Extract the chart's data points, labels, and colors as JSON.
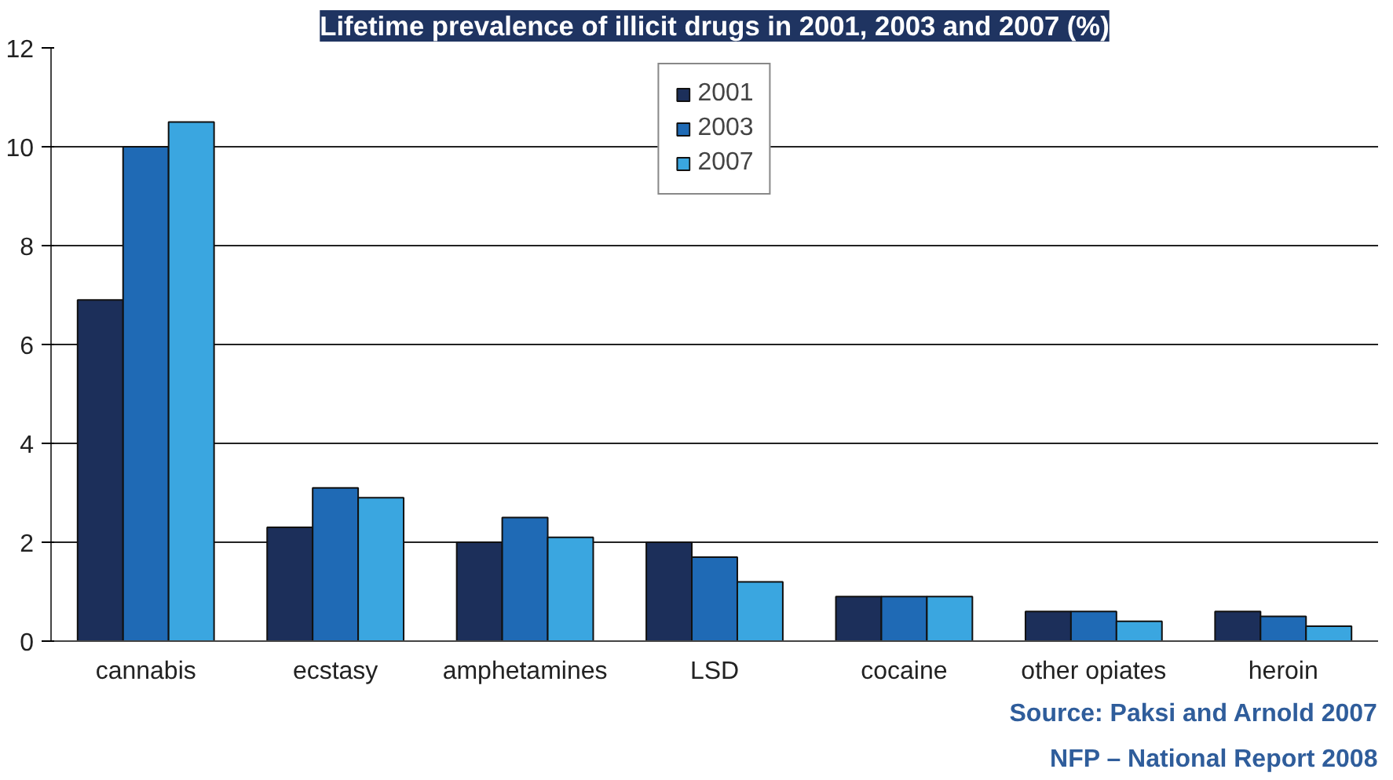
{
  "chart_data": {
    "type": "bar",
    "title": "Lifetime prevalence of illicit drugs in 2001, 2003 and 2007 (%)",
    "categories": [
      "cannabis",
      "ecstasy",
      "amphetamines",
      "LSD",
      "cocaine",
      "other opiates",
      "heroin"
    ],
    "series": [
      {
        "name": "2001",
        "color": "#1c2f5a",
        "values": [
          6.9,
          2.3,
          2.0,
          2.0,
          0.9,
          0.6,
          0.6
        ]
      },
      {
        "name": "2003",
        "color": "#1f6ab5",
        "values": [
          10.0,
          3.1,
          2.5,
          1.7,
          0.9,
          0.6,
          0.5
        ]
      },
      {
        "name": "2007",
        "color": "#3aa6e0",
        "values": [
          10.5,
          2.9,
          2.1,
          1.2,
          0.9,
          0.4,
          0.3
        ]
      }
    ],
    "ylim": [
      0,
      12
    ],
    "yticks": [
      0,
      2,
      4,
      6,
      8,
      10,
      12
    ],
    "grid": "y",
    "legend": "top",
    "annotations": [
      "Source: Paksi and Arnold 2007",
      "NFP – National Report 2008"
    ]
  }
}
